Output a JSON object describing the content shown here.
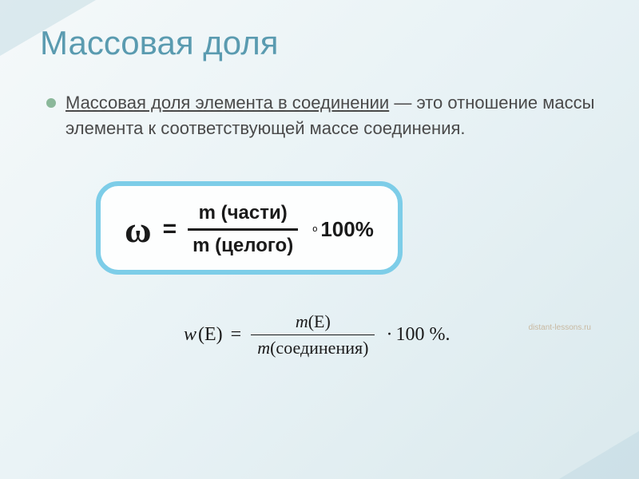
{
  "slide": {
    "title": "Массовая доля",
    "bullet": {
      "underlined": "Массовая доля элемента в соединении",
      "rest": " — это отношение массы элемента к соответствующей массе соединения."
    },
    "formula1": {
      "symbol": "ω",
      "equals": "=",
      "numerator": "m (части)",
      "denominator": "m (целого)",
      "sub_o": "o",
      "percent": "100%"
    },
    "watermark": "distant-lessons.ru",
    "formula2": {
      "w": "w",
      "arg": "(E)",
      "equals": "=",
      "num_m": "m",
      "num_arg": "(E)",
      "den_m": "m",
      "den_arg": "(соединения)",
      "dot": "·",
      "percent": "100 %",
      "period": "."
    }
  },
  "style": {
    "title_color": "#5a9bb0",
    "title_fontsize": 42,
    "bullet_color": "#8bb89a",
    "text_color": "#4a4a4a",
    "text_fontsize": 22,
    "box_border_color": "#7dcde8",
    "box_border_width": 6,
    "box_border_radius": 28,
    "formula_color": "#1a1a1a",
    "omega_fontsize": 46,
    "frac_fontsize": 24,
    "background_gradient": [
      "#f5f9fa",
      "#e8f2f5",
      "#dae9ed"
    ],
    "watermark_color": "#c8b8a0"
  }
}
